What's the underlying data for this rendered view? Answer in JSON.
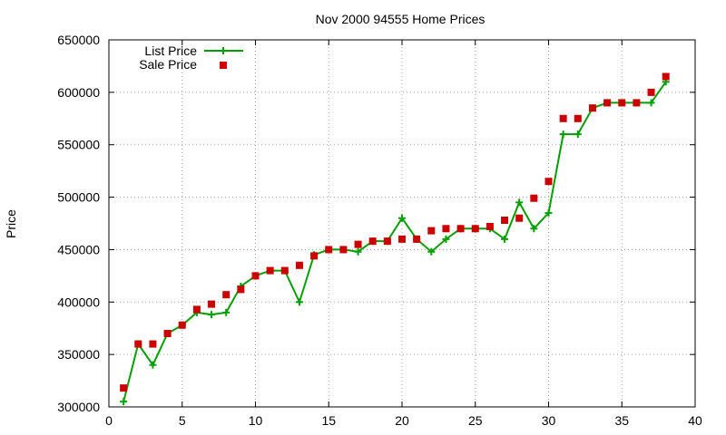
{
  "chart_data": {
    "type": "line",
    "title": "Nov 2000 94555 Home Prices",
    "xlabel": "",
    "ylabel": "Price",
    "xlim": [
      0,
      40
    ],
    "ylim": [
      300000,
      650000
    ],
    "xticks": [
      0,
      5,
      10,
      15,
      20,
      25,
      30,
      35,
      40
    ],
    "yticks": [
      300000,
      350000,
      400000,
      450000,
      500000,
      550000,
      600000,
      650000
    ],
    "grid": true,
    "legend_position": "top-left",
    "series": [
      {
        "name": "List Price",
        "style": "line+plus",
        "color": "#00a000",
        "x": [
          1,
          2,
          3,
          4,
          5,
          6,
          7,
          8,
          9,
          10,
          11,
          12,
          13,
          14,
          15,
          16,
          17,
          18,
          19,
          20,
          21,
          22,
          23,
          24,
          25,
          26,
          27,
          28,
          29,
          30,
          31,
          32,
          33,
          34,
          35,
          36,
          37,
          38
        ],
        "y": [
          305000,
          360000,
          340000,
          370000,
          378000,
          390000,
          388000,
          390000,
          415000,
          425000,
          430000,
          430000,
          400000,
          445000,
          450000,
          450000,
          448000,
          458000,
          458000,
          480000,
          460000,
          448000,
          460000,
          470000,
          470000,
          470000,
          460000,
          495000,
          470000,
          485000,
          560000,
          560000,
          585000,
          590000,
          590000,
          590000,
          590000,
          610000
        ]
      },
      {
        "name": "Sale Price",
        "style": "points",
        "color": "#cc0000",
        "x": [
          1,
          2,
          3,
          4,
          5,
          6,
          7,
          8,
          9,
          10,
          11,
          12,
          13,
          14,
          15,
          16,
          17,
          18,
          19,
          20,
          21,
          22,
          23,
          24,
          25,
          26,
          27,
          28,
          29,
          30,
          31,
          32,
          33,
          34,
          35,
          36,
          37,
          38
        ],
        "y": [
          318000,
          360000,
          360000,
          370000,
          378000,
          393000,
          398000,
          407000,
          412000,
          425000,
          430000,
          430000,
          435000,
          444000,
          450000,
          450000,
          455000,
          458000,
          458000,
          460000,
          460000,
          468000,
          470000,
          470000,
          470000,
          472000,
          478000,
          480000,
          499000,
          515000,
          575000,
          575000,
          585000,
          590000,
          590000,
          590000,
          600000,
          615000
        ]
      }
    ]
  }
}
